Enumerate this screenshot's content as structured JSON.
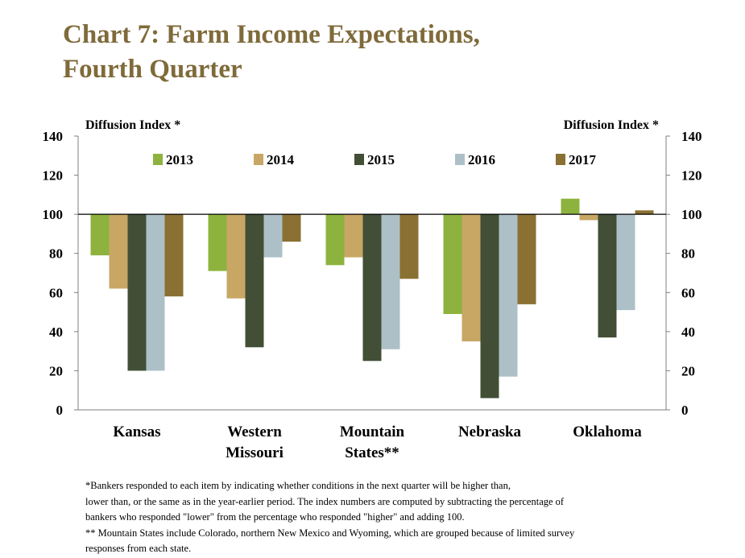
{
  "title": {
    "line1": "Chart 7: Farm Income Expectations,",
    "line2": "Fourth Quarter"
  },
  "colors": {
    "title": "#7f6a3a",
    "2013": "#8db33e",
    "2014": "#c8a764",
    "2015": "#424f36",
    "2016": "#adc0c7",
    "2017": "#8a7032"
  },
  "chart_data": {
    "type": "bar",
    "ylabel_left": "Diffusion Index *",
    "ylabel_right": "Diffusion Index *",
    "ylim": [
      0,
      140
    ],
    "yticks": [
      0,
      20,
      40,
      60,
      80,
      100,
      120,
      140
    ],
    "baseline": 100,
    "legend_position": "top-center",
    "categories": [
      [
        "Kansas"
      ],
      [
        "Western",
        "Missouri"
      ],
      [
        "Mountain",
        "States**"
      ],
      [
        "Nebraska"
      ],
      [
        "Oklahoma"
      ]
    ],
    "series": [
      {
        "name": "2013",
        "values": [
          79,
          71,
          74,
          49,
          108
        ]
      },
      {
        "name": "2014",
        "values": [
          62,
          57,
          78,
          35,
          97
        ]
      },
      {
        "name": "2015",
        "values": [
          20,
          32,
          25,
          6,
          37
        ]
      },
      {
        "name": "2016",
        "values": [
          20,
          78,
          31,
          17,
          51
        ]
      },
      {
        "name": "2017",
        "values": [
          58,
          86,
          67,
          54,
          102
        ]
      }
    ]
  },
  "footnotes": [
    "*Bankers responded to each item by indicating whether conditions in the next quarter will be higher than,",
    "lower than, or the same as in the year-earlier period.  The index numbers are computed by subtracting the percentage of",
    "bankers who responded \"lower\" from the percentage who responded \"higher\" and adding 100.",
    "** Mountain States include Colorado, northern New Mexico and Wyoming, which are grouped because of limited survey",
    "responses from each state."
  ]
}
